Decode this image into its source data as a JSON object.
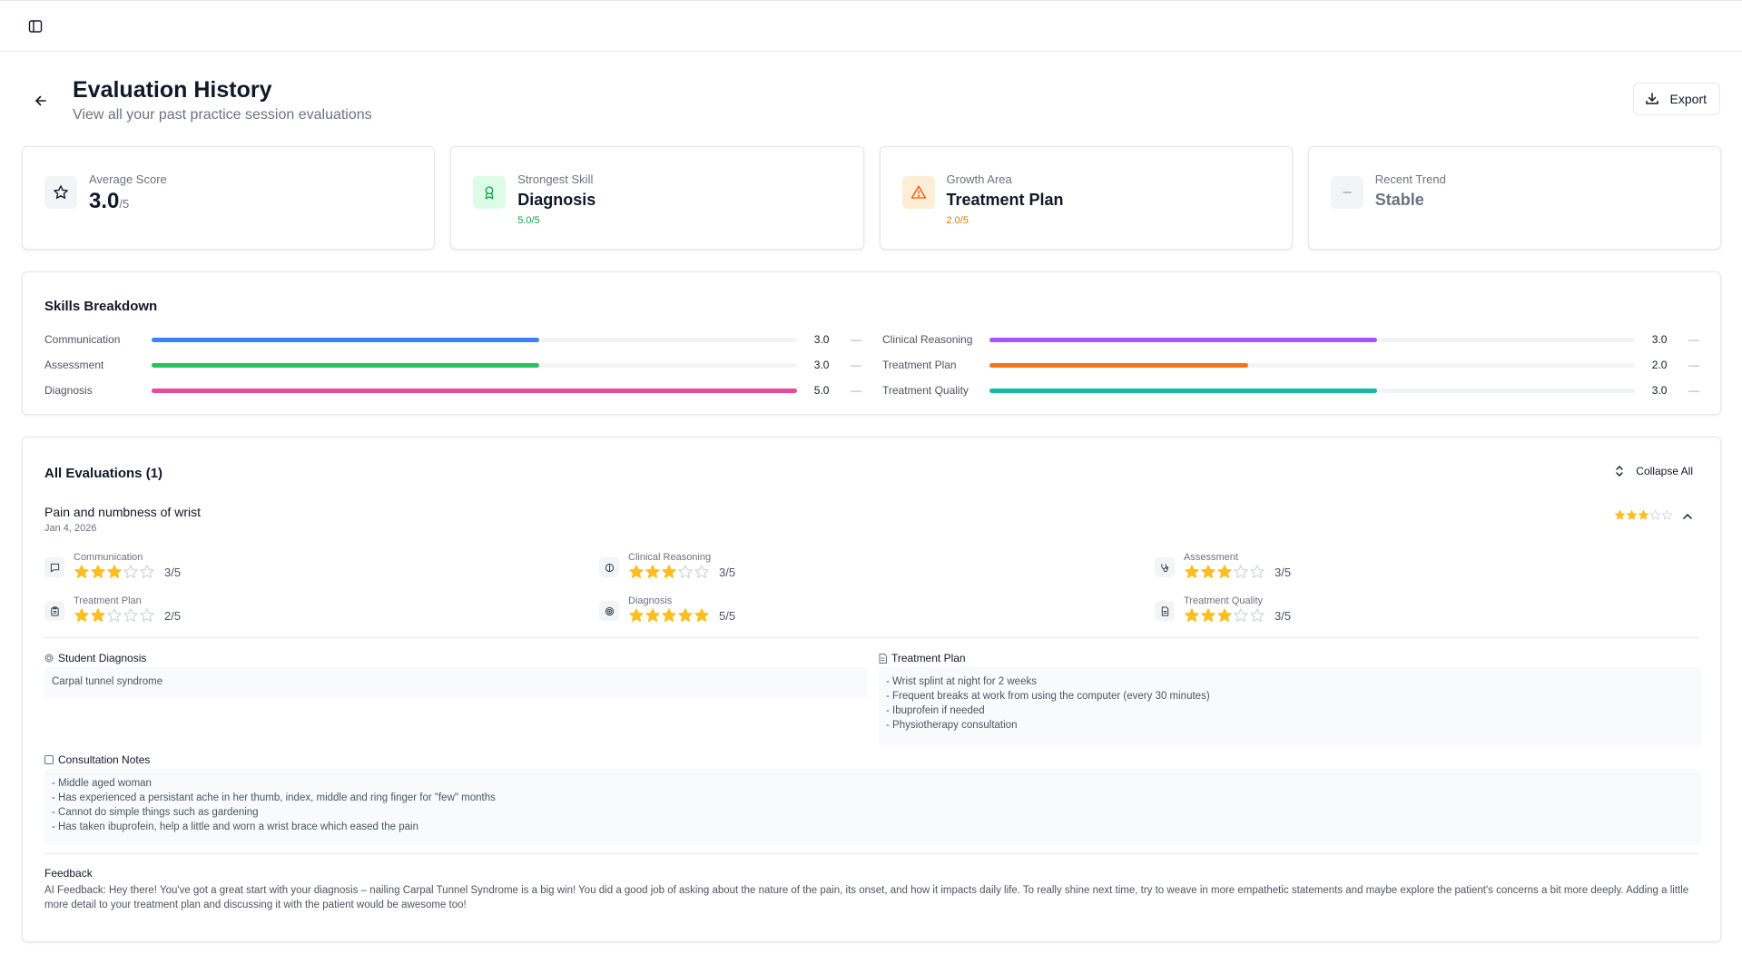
{
  "header": {
    "title": "Evaluation History",
    "subtitle": "View all your past practice session evaluations",
    "export_label": "Export"
  },
  "summary": {
    "average": {
      "label": "Average Score",
      "value": "3.0",
      "unit": "/5"
    },
    "strongest": {
      "label": "Strongest Skill",
      "value": "Diagnosis",
      "sub": "5.0/5",
      "color": "#16a34a"
    },
    "growth": {
      "label": "Growth Area",
      "value": "Treatment Plan",
      "sub": "2.0/5",
      "color": "#d97706"
    },
    "trend": {
      "label": "Recent Trend",
      "value": "Stable"
    }
  },
  "skills": {
    "title": "Skills Breakdown",
    "max": 5,
    "left": [
      {
        "name": "Communication",
        "value": 3.0,
        "display": "3.0",
        "trend": "—",
        "color": "#3b82f6"
      },
      {
        "name": "Assessment",
        "value": 3.0,
        "display": "3.0",
        "trend": "—",
        "color": "#22c55e"
      },
      {
        "name": "Diagnosis",
        "value": 5.0,
        "display": "5.0",
        "trend": "—",
        "color": "#ec4899"
      }
    ],
    "right": [
      {
        "name": "Clinical Reasoning",
        "value": 3.0,
        "display": "3.0",
        "trend": "—",
        "color": "#a855f7"
      },
      {
        "name": "Treatment Plan",
        "value": 2.0,
        "display": "2.0",
        "trend": "—",
        "color": "#f97316"
      },
      {
        "name": "Treatment Quality",
        "value": 3.0,
        "display": "3.0",
        "trend": "—",
        "color": "#14b8a6"
      }
    ]
  },
  "evaluations": {
    "title": "All Evaluations (1)",
    "collapse_label": "Collapse All",
    "item": {
      "title": "Pain and numbness of wrist",
      "date": "Jan 4, 2026",
      "overall_stars": 3,
      "metrics": [
        {
          "label": "Communication",
          "stars": 3,
          "score": "3/5",
          "icon": "message-icon"
        },
        {
          "label": "Clinical Reasoning",
          "stars": 3,
          "score": "3/5",
          "icon": "brain-icon"
        },
        {
          "label": "Assessment",
          "stars": 3,
          "score": "3/5",
          "icon": "stethoscope-icon"
        },
        {
          "label": "Treatment Plan",
          "stars": 2,
          "score": "2/5",
          "icon": "clipboard-icon"
        },
        {
          "label": "Diagnosis",
          "stars": 5,
          "score": "5/5",
          "icon": "target-icon"
        },
        {
          "label": "Treatment Quality",
          "stars": 3,
          "score": "3/5",
          "icon": "document-icon"
        }
      ],
      "student_diagnosis": {
        "label": "Student Diagnosis",
        "text": "Carpal tunnel syndrome"
      },
      "treatment_plan": {
        "label": "Treatment Plan",
        "lines": [
          "- Wrist splint at night for 2 weeks",
          "- Frequent breaks at work from using the computer (every 30 minutes)",
          "- Ibuprofein if needed",
          "- Physiotherapy consultation"
        ]
      },
      "consultation_notes": {
        "label": "Consultation Notes",
        "lines": [
          "- Middle aged woman",
          "- Has experienced a persistant ache in her thumb, index, middle and ring finger for \"few\" months",
          "- Cannot do simple things such as gardening",
          "- Has taken ibuprofein, help a little and worn a wrist brace which eased the pain"
        ]
      },
      "feedback": {
        "label": "Feedback",
        "text": "AI Feedback: Hey there! You've got a great start with your diagnosis – nailing Carpal Tunnel Syndrome is a big win! You did a good job of asking about the nature of the pain, its onset, and how it impacts daily life. To really shine next time, try to weave in more empathetic statements and maybe explore the patient's concerns a bit more deeply. Adding a little more detail to your treatment plan and discussing it with the patient would be awesome too!"
      }
    }
  }
}
